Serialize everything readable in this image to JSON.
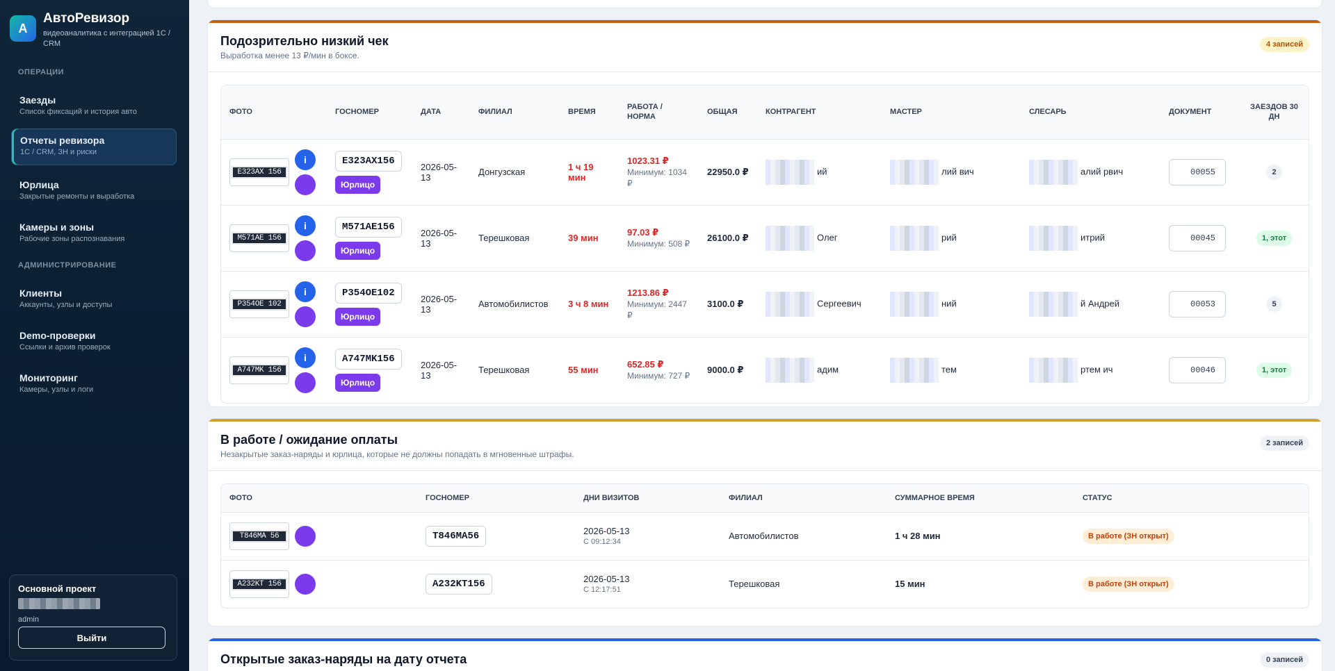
{
  "app": {
    "logo_letter": "A",
    "title": "АвтоРевизор",
    "subtitle": "видеоаналитика с интеграцией 1С / CRM"
  },
  "sidebar": {
    "section_ops": "ОПЕРАЦИИ",
    "section_admin": "АДМИНИСТРИРОВАНИЕ",
    "items": [
      {
        "label": "Заезды",
        "sub": "Список фиксаций и история авто"
      },
      {
        "label": "Отчеты ревизора",
        "sub": "1С / CRM, ЗН и риски"
      },
      {
        "label": "Юрлица",
        "sub": "Закрытые ремонты и выработка"
      },
      {
        "label": "Камеры и зоны",
        "sub": "Рабочие зоны распознавания"
      },
      {
        "label": "Клиенты",
        "sub": "Аккаунты, узлы и доступы"
      },
      {
        "label": "Demo-проверки",
        "sub": "Ссылки и архив проверок"
      },
      {
        "label": "Мониторинг",
        "sub": "Камеры, узлы и логи"
      }
    ],
    "project": {
      "name": "Основной проект",
      "user": "admin",
      "logout": "Выйти"
    }
  },
  "low_check": {
    "title": "Подозрительно низкий чек",
    "subtitle": "Выработка менее 13 ₽/мин в боксе.",
    "count": "4 записей",
    "accent": "#c2610f",
    "columns": [
      "ФОТО",
      "ГОСНОМЕР",
      "ДАТА",
      "ФИЛИАЛ",
      "ВРЕМЯ",
      "РАБОТА / НОРМА",
      "ОБЩАЯ",
      "КОНТРАГЕНТ",
      "МАСТЕР",
      "СЛЕСАРЬ",
      "ДОКУМЕНТ",
      "ЗАЕЗДОВ 30 ДН"
    ],
    "jur_label": "Юрлицо",
    "rows": [
      {
        "img": "E323AX 156",
        "plate": "E323AX156",
        "date": "2026-05-13",
        "branch": "Донгузская",
        "time": "1 ч 19 мин",
        "work": "1023.31 ₽",
        "norm": "Минимум: 1034 ₽",
        "total": "22950.0 ₽",
        "contr": "ий",
        "master": "лий вич",
        "fitter": "алий рвич",
        "doc": "00055",
        "visits": "2"
      },
      {
        "img": "M571AE 156",
        "plate": "M571AE156",
        "date": "2026-05-13",
        "branch": "Терешковая",
        "time": "39 мин",
        "work": "97.03 ₽",
        "norm": "Минимум: 508 ₽",
        "total": "26100.0 ₽",
        "contr": "Олег",
        "master": "рий",
        "fitter": "итрий",
        "doc": "00045",
        "visits": "1, этот"
      },
      {
        "img": "P354OE 102",
        "plate": "P354OE102",
        "date": "2026-05-13",
        "branch": "Автомобилистов",
        "time": "3 ч 8 мин",
        "work": "1213.86 ₽",
        "norm": "Минимум: 2447 ₽",
        "total": "3100.0 ₽",
        "contr": "Сергеевич",
        "master": "ний",
        "fitter": "й Андрей",
        "doc": "00053",
        "visits": "5"
      },
      {
        "img": "A747MK 156",
        "plate": "A747MK156",
        "date": "2026-05-13",
        "branch": "Терешковая",
        "time": "55 мин",
        "work": "652.85 ₽",
        "norm": "Минимум: 727 ₽",
        "total": "9000.0 ₽",
        "contr": "адим",
        "master": "тем",
        "fitter": "ртем ич",
        "doc": "00046",
        "visits": "1, этот"
      }
    ]
  },
  "in_work": {
    "title": "В работе / ожидание оплаты",
    "subtitle": "Незакрытые заказ-наряды и юрлица, которые не должны попадать в мгновенные штрафы.",
    "count": "2 записей",
    "accent": "#d69e2e",
    "columns": [
      "ФОТО",
      "ГОСНОМЕР",
      "ДНИ ВИЗИТОВ",
      "ФИЛИАЛ",
      "СУММАРНОЕ ВРЕМЯ",
      "СТАТУС"
    ],
    "rows": [
      {
        "img": "T846MA 56",
        "plate": "T846MA56",
        "date": "2026-05-13",
        "since": "С 09:12:34",
        "branch": "Автомобилистов",
        "duration": "1 ч 28 мин",
        "status": "В работе (ЗН открыт)"
      },
      {
        "img": "A232KT 156",
        "plate": "A232KT156",
        "date": "2026-05-13",
        "since": "С 12:17:51",
        "branch": "Терешковая",
        "duration": "15 мин",
        "status": "В работе (ЗН открыт)"
      }
    ]
  },
  "open_orders": {
    "title": "Открытые заказ-наряды на дату отчета",
    "count": "0 записей",
    "accent": "#2563eb"
  }
}
